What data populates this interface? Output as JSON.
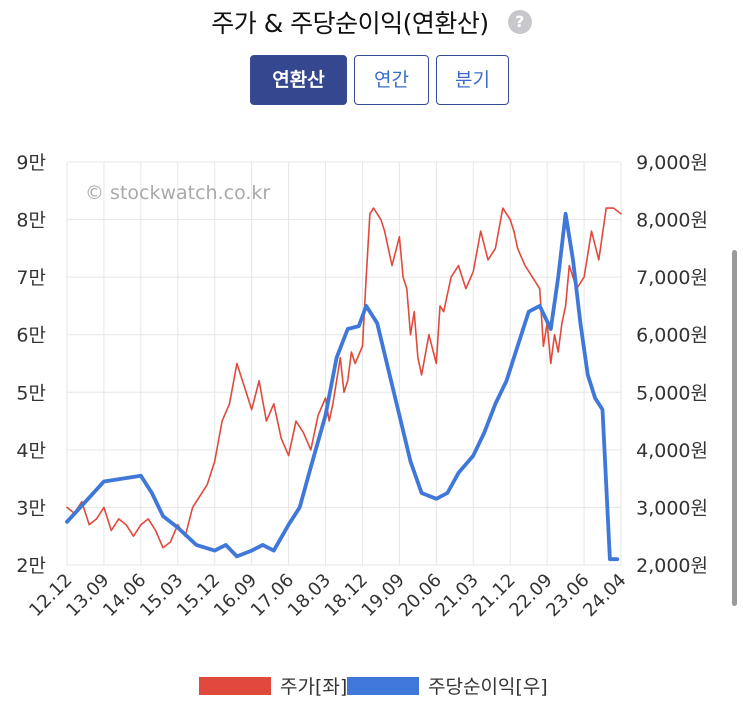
{
  "header": {
    "title": "주가 & 주당순이익(연환산)",
    "help_icon": "question-icon",
    "help_glyph": "?"
  },
  "tabs": [
    {
      "label": "연환산",
      "active": true
    },
    {
      "label": "연간",
      "active": false
    },
    {
      "label": "분기",
      "active": false
    }
  ],
  "colors": {
    "price": "#e04a3c",
    "eps": "#3f78d8",
    "tab_active": "#34478f",
    "grid": "#e6e6e6"
  },
  "watermark": "© stockwatch.co.kr",
  "chart_data": {
    "type": "line",
    "x_ticks": [
      "12.12",
      "13.09",
      "14.06",
      "15.03",
      "15.12",
      "16.09",
      "17.06",
      "18.03",
      "18.12",
      "19.09",
      "20.06",
      "21.03",
      "21.12",
      "22.09",
      "23.06",
      "24.04"
    ],
    "y_left": {
      "ticks": [
        "2만",
        "3만",
        "4만",
        "5만",
        "6만",
        "7만",
        "8만",
        "9만"
      ],
      "range": [
        20000,
        90000
      ]
    },
    "y_right": {
      "ticks": [
        "2,000원",
        "3,000원",
        "4,000원",
        "5,000원",
        "6,000원",
        "7,000원",
        "8,000원",
        "9,000원"
      ],
      "range": [
        2000,
        9000
      ]
    },
    "grid": true,
    "legend": "bottom",
    "series": [
      {
        "name": "주가[좌]",
        "axis": "left",
        "x": [
          0,
          0.2,
          0.4,
          0.6,
          0.8,
          1,
          1.2,
          1.4,
          1.6,
          1.8,
          2,
          2.2,
          2.4,
          2.6,
          2.8,
          3,
          3.2,
          3.4,
          3.6,
          3.8,
          4,
          4.2,
          4.4,
          4.6,
          4.8,
          5,
          5.2,
          5.4,
          5.6,
          5.8,
          6,
          6.2,
          6.4,
          6.6,
          6.8,
          7,
          7.1,
          7.2,
          7.3,
          7.4,
          7.5,
          7.6,
          7.7,
          7.8,
          8,
          8.1,
          8.2,
          8.3,
          8.4,
          8.5,
          8.6,
          8.8,
          9,
          9.1,
          9.2,
          9.3,
          9.4,
          9.5,
          9.6,
          9.8,
          10,
          10.1,
          10.2,
          10.4,
          10.6,
          10.8,
          11,
          11.2,
          11.4,
          11.6,
          11.8,
          11.9,
          12,
          12.1,
          12.2,
          12.4,
          12.6,
          12.8,
          12.9,
          13,
          13.1,
          13.2,
          13.3,
          13.4,
          13.5,
          13.6,
          13.7,
          13.8,
          14,
          14.2,
          14.4,
          14.6,
          14.8,
          15
        ],
        "values": [
          30000,
          29000,
          31000,
          27000,
          28000,
          30000,
          26000,
          28000,
          27000,
          25000,
          27000,
          28000,
          26000,
          23000,
          24000,
          27000,
          25000,
          30000,
          32000,
          34000,
          38000,
          45000,
          48000,
          55000,
          51000,
          47000,
          52000,
          45000,
          48000,
          42000,
          39000,
          45000,
          43000,
          40000,
          46000,
          49000,
          45000,
          48000,
          52000,
          56000,
          50000,
          52000,
          57000,
          55000,
          58000,
          70000,
          81000,
          82000,
          81000,
          80000,
          78000,
          72000,
          77000,
          70000,
          68000,
          60000,
          64000,
          56000,
          53000,
          60000,
          55000,
          65000,
          64000,
          70000,
          72000,
          68000,
          71000,
          78000,
          73000,
          75000,
          82000,
          81000,
          80000,
          78000,
          75000,
          72000,
          70000,
          68000,
          58000,
          62000,
          55000,
          60000,
          57000,
          62000,
          65000,
          72000,
          70000,
          68000,
          70000,
          78000,
          73000,
          82000,
          82000,
          81000
        ]
      },
      {
        "name": "주당순이익[우]",
        "axis": "right",
        "x": [
          0,
          0.5,
          1,
          1.5,
          2,
          2.3,
          2.6,
          3,
          3.5,
          4,
          4.3,
          4.6,
          5,
          5.3,
          5.6,
          6,
          6.3,
          6.6,
          7,
          7.3,
          7.6,
          7.9,
          8.1,
          8.4,
          8.7,
          9,
          9.3,
          9.6,
          10,
          10.3,
          10.6,
          11,
          11.3,
          11.6,
          11.9,
          12.2,
          12.5,
          12.8,
          13.1,
          13.3,
          13.5,
          13.7,
          13.9,
          14.1,
          14.3,
          14.5,
          14.7,
          14.9
        ],
        "values": [
          2750,
          3100,
          3450,
          3500,
          3550,
          3250,
          2850,
          2650,
          2350,
          2250,
          2350,
          2150,
          2250,
          2350,
          2250,
          2700,
          3000,
          3700,
          4600,
          5600,
          6100,
          6150,
          6500,
          6200,
          5400,
          4600,
          3800,
          3250,
          3150,
          3250,
          3600,
          3900,
          4300,
          4800,
          5200,
          5800,
          6400,
          6500,
          6100,
          7000,
          8100,
          7300,
          6200,
          5300,
          4900,
          4700,
          2100,
          2100
        ]
      }
    ]
  }
}
